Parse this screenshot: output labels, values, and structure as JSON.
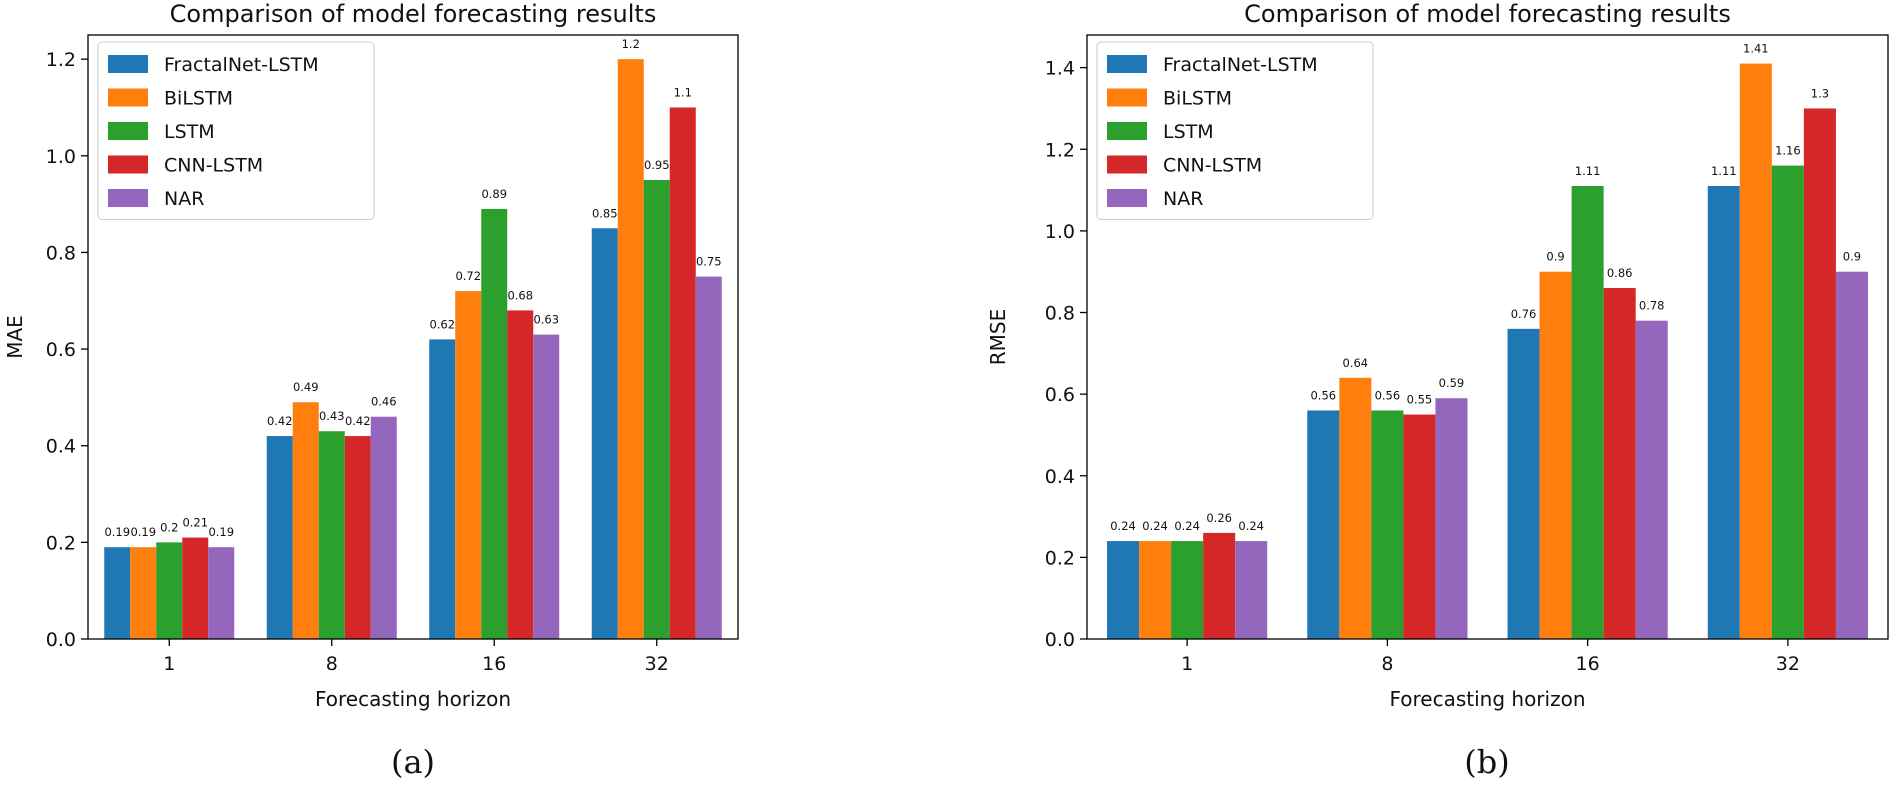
{
  "chart_data": [
    {
      "type": "bar",
      "title": "Comparison of model forecasting results",
      "xlabel": "Forecasting horizon",
      "ylabel": "MAE",
      "ylim": [
        0,
        1.25
      ],
      "yticks": [
        "0.0",
        "0.2",
        "0.4",
        "0.6",
        "0.8",
        "1.0",
        "1.2"
      ],
      "categories": [
        "1",
        "8",
        "16",
        "32"
      ],
      "legend_position": "top-left",
      "caption": "(a)",
      "series": [
        {
          "name": "FractalNet-LSTM",
          "color": "#1f77b4",
          "values": [
            0.19,
            0.42,
            0.62,
            0.85
          ],
          "labels": [
            "0.19",
            "0.42",
            "0.62",
            "0.85"
          ]
        },
        {
          "name": "BiLSTM",
          "color": "#ff7f0e",
          "values": [
            0.19,
            0.49,
            0.72,
            1.2
          ],
          "labels": [
            "0.19",
            "0.49",
            "0.72",
            "1.2"
          ]
        },
        {
          "name": "LSTM",
          "color": "#2ca02c",
          "values": [
            0.2,
            0.43,
            0.89,
            0.95
          ],
          "labels": [
            "0.2",
            "0.43",
            "0.89",
            "0.95"
          ]
        },
        {
          "name": "CNN-LSTM",
          "color": "#d62728",
          "values": [
            0.21,
            0.42,
            0.68,
            1.1
          ],
          "labels": [
            "0.21",
            "0.42",
            "0.68",
            "1.1"
          ]
        },
        {
          "name": "NAR",
          "color": "#9467bd",
          "values": [
            0.19,
            0.46,
            0.63,
            0.75
          ],
          "labels": [
            "0.19",
            "0.46",
            "0.63",
            "0.75"
          ]
        }
      ]
    },
    {
      "type": "bar",
      "title": "Comparison of model forecasting results",
      "xlabel": "Forecasting horizon",
      "ylabel": "RMSE",
      "ylim": [
        0,
        1.48
      ],
      "yticks": [
        "0.0",
        "0.2",
        "0.4",
        "0.6",
        "0.8",
        "1.0",
        "1.2",
        "1.4"
      ],
      "categories": [
        "1",
        "8",
        "16",
        "32"
      ],
      "legend_position": "top-left",
      "caption": "(b)",
      "series": [
        {
          "name": "FractalNet-LSTM",
          "color": "#1f77b4",
          "values": [
            0.24,
            0.56,
            0.76,
            1.11
          ],
          "labels": [
            "0.24",
            "0.56",
            "0.76",
            "1.11"
          ]
        },
        {
          "name": "BiLSTM",
          "color": "#ff7f0e",
          "values": [
            0.24,
            0.64,
            0.9,
            1.41
          ],
          "labels": [
            "0.24",
            "0.64",
            "0.9",
            "1.41"
          ]
        },
        {
          "name": "LSTM",
          "color": "#2ca02c",
          "values": [
            0.24,
            0.56,
            1.11,
            1.16
          ],
          "labels": [
            "0.24",
            "0.56",
            "1.11",
            "1.16"
          ]
        },
        {
          "name": "CNN-LSTM",
          "color": "#d62728",
          "values": [
            0.26,
            0.55,
            0.86,
            1.3
          ],
          "labels": [
            "0.26",
            "0.55",
            "0.86",
            "1.3"
          ]
        },
        {
          "name": "NAR",
          "color": "#9467bd",
          "values": [
            0.24,
            0.59,
            0.78,
            0.9
          ],
          "labels": [
            "0.24",
            "0.59",
            "0.78",
            "0.9"
          ]
        }
      ]
    }
  ]
}
